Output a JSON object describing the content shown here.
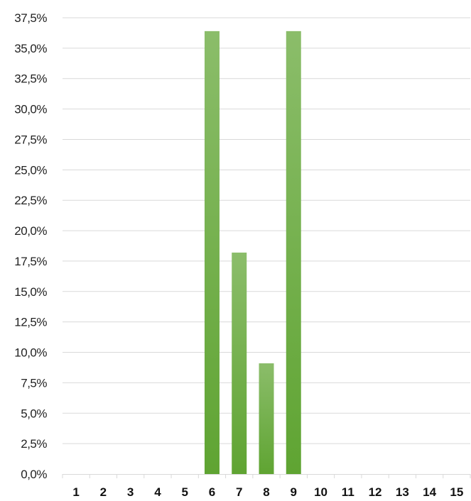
{
  "chart_data": {
    "type": "bar",
    "title": "",
    "xlabel": "",
    "ylabel": "",
    "categories": [
      "1",
      "2",
      "3",
      "4",
      "5",
      "6",
      "7",
      "8",
      "9",
      "10",
      "11",
      "12",
      "13",
      "14",
      "15"
    ],
    "values": [
      0,
      0,
      0,
      0,
      0,
      36.4,
      18.2,
      9.1,
      36.4,
      0,
      0,
      0,
      0,
      0,
      0
    ],
    "ylim": [
      0,
      37.5
    ],
    "yticks": [
      "0,0%",
      "2,5%",
      "5,0%",
      "7,5%",
      "10,0%",
      "12,5%",
      "15,0%",
      "17,5%",
      "20,0%",
      "22,5%",
      "25,0%",
      "27,5%",
      "30,0%",
      "32,5%",
      "35,0%",
      "37,5%"
    ],
    "grid": true,
    "legend": "none",
    "colors": {
      "bar_top": "#8bbd6a",
      "bar_bottom": "#5fa432",
      "grid": "#d9d9d9"
    }
  }
}
